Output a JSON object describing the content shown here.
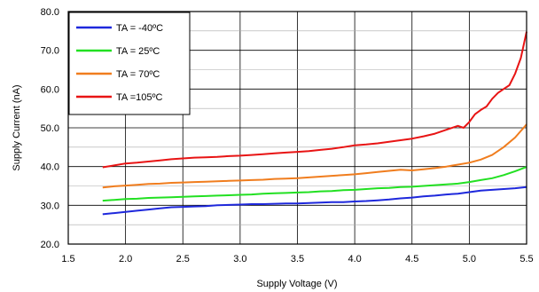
{
  "chart_data": {
    "type": "line",
    "title": "",
    "xlabel": "Supply Voltage (V)",
    "ylabel": "Supply Current (nA)",
    "xlim": [
      1.5,
      5.5
    ],
    "ylim": [
      20.0,
      80.0
    ],
    "x_ticks": [
      1.5,
      2.0,
      2.5,
      3.0,
      3.5,
      4.0,
      4.5,
      5.0,
      5.5
    ],
    "x_tick_labels": [
      "1.5",
      "2.0",
      "2.5",
      "3.0",
      "3.5",
      "4.0",
      "4.5",
      "5.0",
      "5.5"
    ],
    "y_ticks": [
      20.0,
      30.0,
      40.0,
      50.0,
      60.0,
      70.0,
      80.0
    ],
    "y_tick_labels": [
      "20.0",
      "30.0",
      "40.0",
      "50.0",
      "60.0",
      "70.0",
      "80.0"
    ],
    "grid": true,
    "legend_position": "top-left",
    "series": [
      {
        "name": "TA = -40ºC",
        "color": "#1e28dc",
        "x": [
          1.8,
          1.9,
          2.0,
          2.1,
          2.2,
          2.3,
          2.4,
          2.5,
          2.6,
          2.7,
          2.8,
          2.9,
          3.0,
          3.1,
          3.2,
          3.3,
          3.4,
          3.5,
          3.6,
          3.7,
          3.8,
          3.9,
          4.0,
          4.1,
          4.2,
          4.3,
          4.4,
          4.5,
          4.6,
          4.7,
          4.8,
          4.9,
          5.0,
          5.1,
          5.2,
          5.3,
          5.4,
          5.5
        ],
        "y": [
          27.7,
          28.0,
          28.3,
          28.6,
          28.9,
          29.2,
          29.5,
          29.6,
          29.7,
          29.8,
          30.0,
          30.1,
          30.2,
          30.3,
          30.3,
          30.4,
          30.5,
          30.5,
          30.6,
          30.7,
          30.8,
          30.8,
          31.0,
          31.1,
          31.3,
          31.5,
          31.8,
          32.0,
          32.3,
          32.5,
          32.8,
          33.0,
          33.4,
          33.8,
          34.0,
          34.2,
          34.4,
          34.7
        ]
      },
      {
        "name": "TA = 25ºC",
        "color": "#22e022",
        "x": [
          1.8,
          1.9,
          2.0,
          2.1,
          2.2,
          2.3,
          2.4,
          2.5,
          2.6,
          2.7,
          2.8,
          2.9,
          3.0,
          3.1,
          3.2,
          3.3,
          3.4,
          3.5,
          3.6,
          3.7,
          3.8,
          3.9,
          4.0,
          4.1,
          4.2,
          4.3,
          4.4,
          4.5,
          4.6,
          4.7,
          4.8,
          4.9,
          5.0,
          5.1,
          5.2,
          5.3,
          5.4,
          5.5
        ],
        "y": [
          31.2,
          31.4,
          31.6,
          31.7,
          31.9,
          32.0,
          32.1,
          32.2,
          32.3,
          32.4,
          32.5,
          32.6,
          32.7,
          32.8,
          33.0,
          33.1,
          33.2,
          33.3,
          33.4,
          33.6,
          33.7,
          33.9,
          34.0,
          34.2,
          34.4,
          34.5,
          34.7,
          34.8,
          35.0,
          35.2,
          35.4,
          35.6,
          36.0,
          36.5,
          37.0,
          37.8,
          38.8,
          39.9
        ]
      },
      {
        "name": "TA = 70ºC",
        "color": "#f07d1e",
        "x": [
          1.8,
          1.9,
          2.0,
          2.1,
          2.2,
          2.3,
          2.4,
          2.5,
          2.6,
          2.7,
          2.8,
          2.9,
          3.0,
          3.1,
          3.2,
          3.3,
          3.4,
          3.5,
          3.6,
          3.7,
          3.8,
          3.9,
          4.0,
          4.1,
          4.2,
          4.3,
          4.4,
          4.5,
          4.6,
          4.7,
          4.8,
          4.9,
          5.0,
          5.1,
          5.2,
          5.3,
          5.4,
          5.5
        ],
        "y": [
          34.6,
          34.9,
          35.1,
          35.3,
          35.5,
          35.6,
          35.8,
          35.9,
          36.0,
          36.1,
          36.2,
          36.3,
          36.4,
          36.5,
          36.6,
          36.8,
          36.9,
          37.0,
          37.2,
          37.4,
          37.6,
          37.8,
          38.0,
          38.3,
          38.6,
          38.9,
          39.2,
          39.0,
          39.3,
          39.6,
          40.0,
          40.5,
          41.0,
          41.8,
          43.0,
          45.0,
          47.5,
          50.9
        ]
      },
      {
        "name": "TA =105ºC",
        "color": "#e81414",
        "x": [
          1.8,
          1.9,
          2.0,
          2.1,
          2.2,
          2.3,
          2.4,
          2.5,
          2.6,
          2.7,
          2.8,
          2.9,
          3.0,
          3.1,
          3.2,
          3.3,
          3.4,
          3.5,
          3.6,
          3.7,
          3.8,
          3.9,
          4.0,
          4.1,
          4.2,
          4.3,
          4.4,
          4.5,
          4.6,
          4.7,
          4.8,
          4.9,
          4.95,
          5.0,
          5.05,
          5.1,
          5.15,
          5.2,
          5.25,
          5.3,
          5.35,
          5.4,
          5.45,
          5.5
        ],
        "y": [
          39.8,
          40.3,
          40.8,
          41.0,
          41.3,
          41.6,
          41.9,
          42.1,
          42.3,
          42.4,
          42.5,
          42.7,
          42.8,
          43.0,
          43.2,
          43.4,
          43.6,
          43.8,
          44.0,
          44.3,
          44.6,
          45.0,
          45.5,
          45.7,
          46.0,
          46.4,
          46.8,
          47.2,
          47.8,
          48.5,
          49.5,
          50.5,
          50.0,
          51.5,
          53.5,
          54.6,
          55.5,
          57.5,
          59.0,
          60.0,
          61.0,
          64.0,
          68.0,
          74.8
        ]
      }
    ]
  }
}
